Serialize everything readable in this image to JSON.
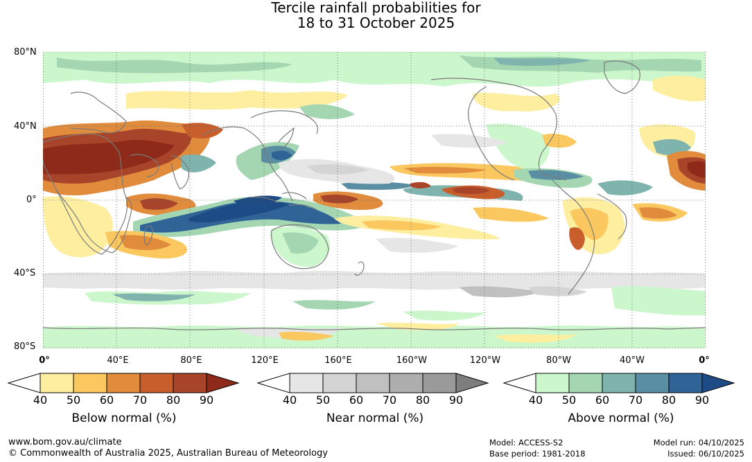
{
  "title": {
    "line1": "Tercile rainfall probabilities for",
    "line2": "18 to 31 October 2025"
  },
  "map": {
    "lat_labels": [
      "80°N",
      "40°N",
      "0°",
      "40°S",
      "80°S"
    ],
    "lon_labels": [
      "0°",
      "40°E",
      "80°E",
      "120°E",
      "160°E",
      "160°W",
      "120°W",
      "80°W",
      "40°W",
      "0°"
    ],
    "colors": {
      "land_outline": "#7a7a7a",
      "grid": "#555555"
    }
  },
  "legends": [
    {
      "title": "Below normal (%)",
      "ticks": [
        "40",
        "50",
        "60",
        "70",
        "80",
        "90"
      ],
      "colors": [
        "#ffffff",
        "#fdeea0",
        "#fbc85f",
        "#e08c3c",
        "#c85e2c",
        "#a8442a",
        "#8e2a1a"
      ]
    },
    {
      "title": "Near normal (%)",
      "ticks": [
        "40",
        "50",
        "60",
        "70",
        "80",
        "90"
      ],
      "colors": [
        "#ffffff",
        "#e6e6e6",
        "#d4d4d4",
        "#c0c0c0",
        "#aeaeae",
        "#9a9a9a",
        "#7e7e7e"
      ]
    },
    {
      "title": "Above normal (%)",
      "ticks": [
        "40",
        "50",
        "60",
        "70",
        "80",
        "90"
      ],
      "colors": [
        "#ffffff",
        "#ccf7cc",
        "#a4d6b2",
        "#7fb4ae",
        "#5a8ea2",
        "#306496",
        "#1c4b86"
      ]
    }
  ],
  "footer": {
    "website": "www.bom.gov.au/climate",
    "copyright": "© Commonwealth of Australia 2025, Australian Bureau of Meteorology",
    "model": "Model: ACCESS-S2",
    "base_period": "Base period: 1981-2018",
    "model_run": "Model run: 04/10/2025",
    "issued": "Issued: 06/10/2025"
  }
}
